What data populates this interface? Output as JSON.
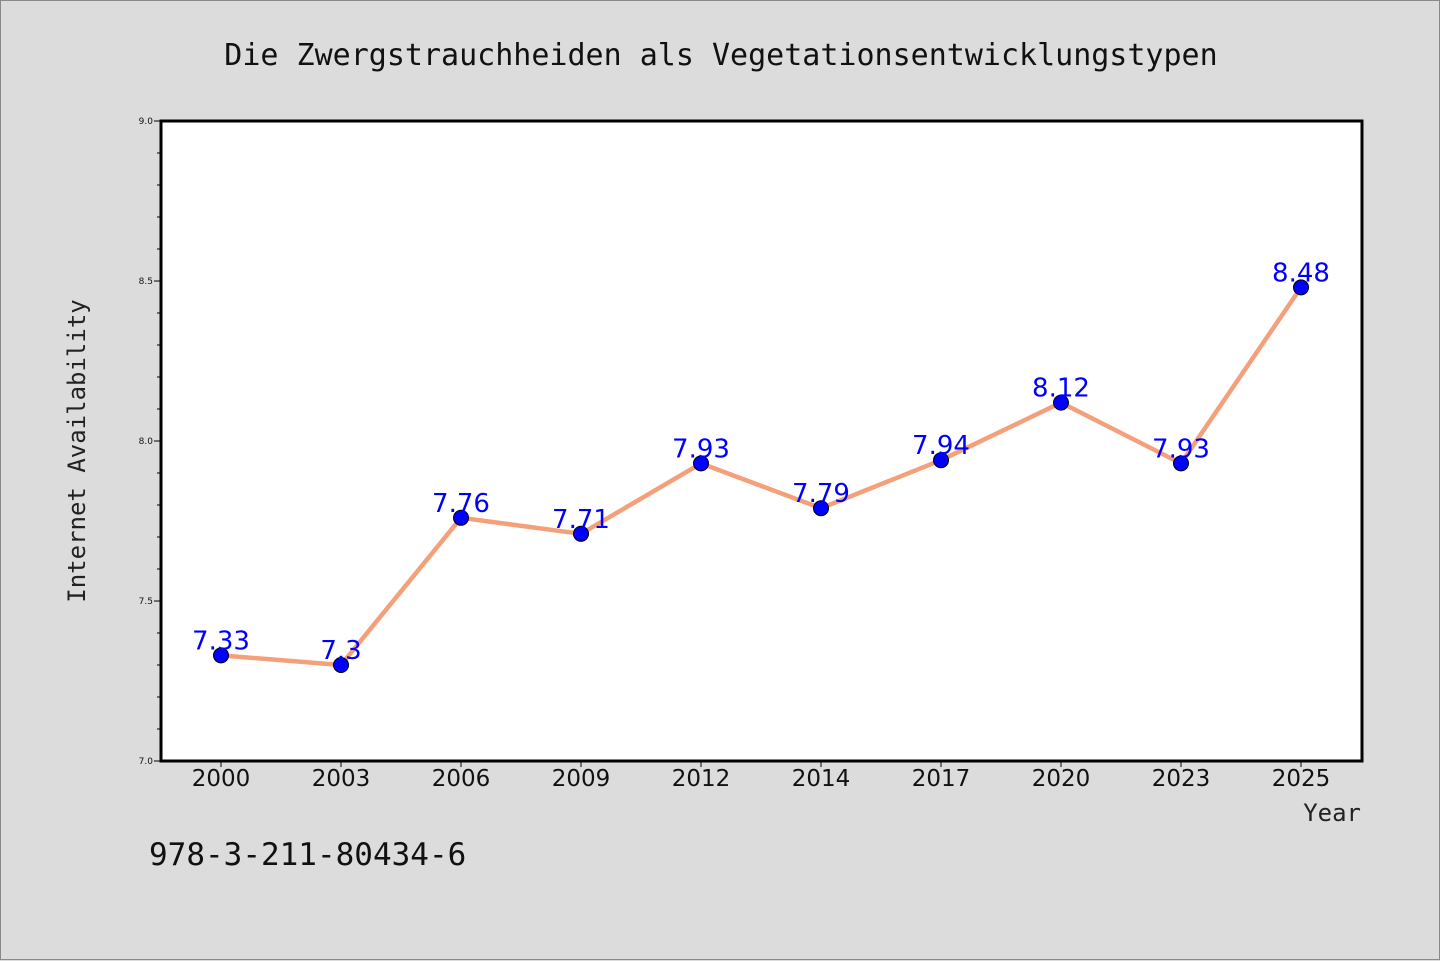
{
  "chart_data": {
    "type": "line",
    "title": "Die Zwergstrauchheiden als Vegetationsentwicklungstypen",
    "xlabel": "Year",
    "ylabel": "Internet Availability",
    "categories": [
      "2000",
      "2003",
      "2006",
      "2009",
      "2012",
      "2014",
      "2017",
      "2020",
      "2023",
      "2025"
    ],
    "series": [
      {
        "values": [
          7.33,
          7.3,
          7.76,
          7.71,
          7.93,
          7.79,
          7.94,
          8.12,
          7.93,
          8.48
        ]
      }
    ],
    "data_labels": [
      "7.33",
      "7.3",
      "7.76",
      "7.71",
      "7.93",
      "7.79",
      "7.94",
      "8.12",
      "7.93",
      "8.48"
    ],
    "ylim": [
      7.0,
      9.0
    ],
    "yticks": [
      "7.0",
      "7.5",
      "8.0",
      "8.5",
      "9.0"
    ],
    "grid": false,
    "line_color": "#f4a07a",
    "marker_color": "#0000ff"
  },
  "footnote": "978-3-211-80434-6"
}
